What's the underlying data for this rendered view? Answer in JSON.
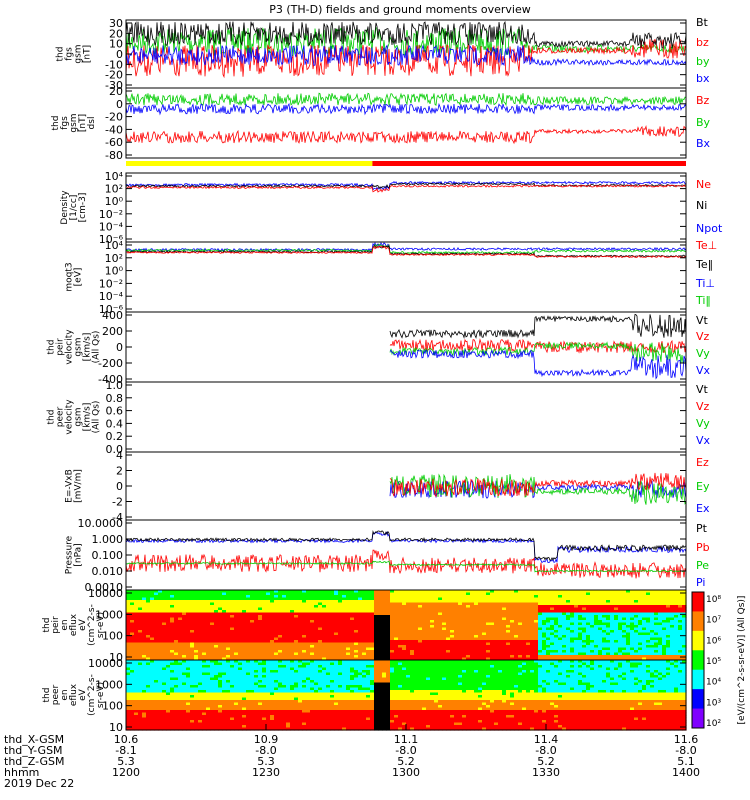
{
  "title": "P3 (TH-D) fields and ground moments overview",
  "bottom": {
    "rows": [
      "thd_X-GSM",
      "thd_Y-GSM",
      "thd_Z-GSM",
      "hhmm",
      "2019 Dec 22"
    ],
    "cols": [
      [
        "10.6",
        "-8.1",
        "5.3",
        "1200"
      ],
      [
        "10.9",
        "-8.0",
        "5.3",
        "1230"
      ],
      [
        "11.1",
        "-8.0",
        "5.2",
        "1300"
      ],
      [
        "11.4",
        "-8.0",
        "5.2",
        "1330"
      ],
      [
        "11.6",
        "-8.0",
        "5.1",
        "1400"
      ]
    ]
  },
  "colorbar": {
    "ticks": [
      "10⁸",
      "10⁷",
      "10⁶",
      "10⁵",
      "10⁴",
      "10³",
      "10²"
    ],
    "label": "[eV/(cm^2-s-sr-eV)] (All Qs)]",
    "colors": [
      "#ff0000",
      "#ff8000",
      "#ffff00",
      "#00ff00",
      "#00ffff",
      "#0000ff"
    ]
  },
  "status_bar": {
    "colors": [
      "#ffff00",
      "#ff0000"
    ]
  },
  "chart_data": [
    {
      "type": "line",
      "id": "p1",
      "ylabel": [
        "thd",
        "fgs",
        "gsm",
        "[nT]"
      ],
      "ticks": [
        "30",
        "20",
        "10",
        "0",
        "-10",
        "-20",
        "-30"
      ],
      "ylim": [
        -30,
        30
      ],
      "series": [
        {
          "name": "Bt",
          "color": "#000000"
        },
        {
          "name": "bz",
          "color": "#ff0000"
        },
        {
          "name": "by",
          "color": "#00cc00"
        },
        {
          "name": "bx",
          "color": "#0000ff"
        }
      ]
    },
    {
      "type": "line",
      "id": "p2",
      "ylabel": [
        "thd",
        "fgs",
        "gsm",
        "[nT]",
        "dsl"
      ],
      "ticks": [
        "20",
        "0",
        "-20",
        "-40",
        "-60",
        "-80"
      ],
      "ylim": [
        -90,
        30
      ],
      "series": [
        {
          "name": "Bz",
          "color": "#ff0000"
        },
        {
          "name": "By",
          "color": "#00cc00"
        },
        {
          "name": "Bx",
          "color": "#0000ff"
        }
      ]
    },
    {
      "type": "line",
      "id": "p3",
      "ylabel": [
        "Density",
        "[1/cc]",
        "[cm-3]"
      ],
      "ticks": [
        "10⁴",
        "10²",
        "10⁰",
        "10⁻²",
        "10⁻⁴",
        "10⁻⁶"
      ],
      "ylim": [
        -6,
        4
      ],
      "scale": "log",
      "series": [
        {
          "name": "Ne",
          "color": "#ff0000"
        },
        {
          "name": "Ni",
          "color": "#000000"
        },
        {
          "name": "Npot",
          "color": "#0000ff"
        }
      ]
    },
    {
      "type": "line",
      "id": "p4",
      "ylabel": [
        "moqt3",
        "[eV]"
      ],
      "ticks": [
        "10⁴",
        "10²",
        "10⁰",
        "10⁻²",
        "10⁻⁴",
        "10⁻⁶"
      ],
      "ylim": [
        -6,
        4
      ],
      "scale": "log",
      "series": [
        {
          "name": "Te⊥",
          "color": "#ff0000"
        },
        {
          "name": "Te‖",
          "color": "#000000"
        },
        {
          "name": "Ti⊥",
          "color": "#0000ff"
        },
        {
          "name": "Ti‖",
          "color": "#00cc00"
        }
      ]
    },
    {
      "type": "line",
      "id": "p5",
      "ylabel": [
        "thd",
        "peir",
        "velocity",
        "gsm",
        "[km/s]",
        "(All Qs)"
      ],
      "ticks": [
        "400",
        "200",
        "0",
        "-200",
        "-400"
      ],
      "ylim": [
        -400,
        400
      ],
      "series": [
        {
          "name": "Vt",
          "color": "#000000"
        },
        {
          "name": "Vz",
          "color": "#ff0000"
        },
        {
          "name": "Vy",
          "color": "#00cc00"
        },
        {
          "name": "Vx",
          "color": "#0000ff"
        }
      ]
    },
    {
      "type": "line",
      "id": "p6",
      "ylabel": [
        "thd",
        "peer",
        "velocity",
        "gsm",
        "[km/s]",
        "(All Qs)"
      ],
      "ticks": [
        "1.0",
        "0.8",
        "0.6",
        "0.4",
        "0.2",
        "0.0"
      ],
      "ylim": [
        0,
        1
      ],
      "series": [
        {
          "name": "Vt",
          "color": "#000000"
        },
        {
          "name": "Vz",
          "color": "#ff0000"
        },
        {
          "name": "Vy",
          "color": "#00cc00"
        },
        {
          "name": "Vx",
          "color": "#0000ff"
        }
      ]
    },
    {
      "type": "line",
      "id": "p7",
      "ylabel": [
        "E=-VxB",
        "[mV/m]"
      ],
      "ticks": [
        "4",
        "2",
        "0",
        "-2",
        "-4"
      ],
      "ylim": [
        -4,
        4
      ],
      "series": [
        {
          "name": "Ez",
          "color": "#ff0000"
        },
        {
          "name": "Ey",
          "color": "#00cc00"
        },
        {
          "name": "Ex",
          "color": "#0000ff"
        }
      ]
    },
    {
      "type": "line",
      "id": "p8",
      "ylabel": [
        "Pressure",
        "[nPa]"
      ],
      "ticks": [
        "10.0000",
        "1.000",
        "0.100",
        "0.010",
        "0.0010"
      ],
      "ylim": [
        0.001,
        10
      ],
      "scale": "log",
      "series": [
        {
          "name": "Pt",
          "color": "#000000"
        },
        {
          "name": "Pb",
          "color": "#ff0000"
        },
        {
          "name": "Pe",
          "color": "#00cc00"
        },
        {
          "name": "Pi",
          "color": "#0000ff"
        }
      ]
    },
    {
      "type": "heatmap",
      "id": "p9",
      "ylabel": [
        "thd",
        "peir",
        "en",
        "eflux",
        "eV",
        "(cm^2-s-",
        "sr-eV)"
      ],
      "ticks": [
        "10000",
        "1000",
        "100",
        "10"
      ],
      "scale": "log"
    },
    {
      "type": "heatmap",
      "id": "p10",
      "ylabel": [
        "thd",
        "peer",
        "en",
        "eflux",
        "eV",
        "(cm^2-s-",
        "sr-eV)"
      ],
      "ticks": [
        "10000",
        "1000",
        "100",
        "10"
      ],
      "scale": "log"
    }
  ]
}
